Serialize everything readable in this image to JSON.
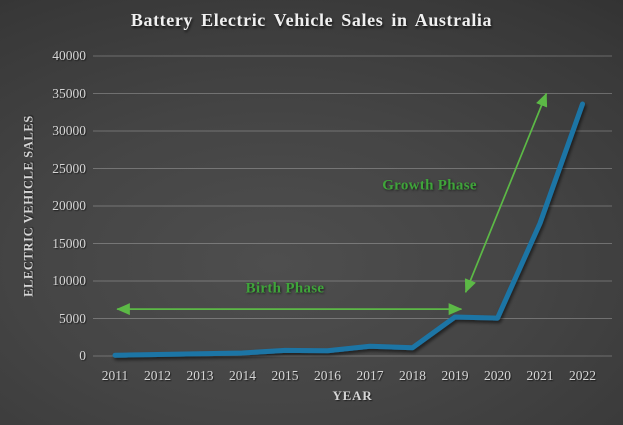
{
  "chart_data": {
    "type": "line",
    "title": "Battery Electric Vehicle Sales in Australia",
    "xlabel": "YEAR",
    "ylabel": "ELECTRIC VEHICLE SALES",
    "categories": [
      2011,
      2012,
      2013,
      2014,
      2015,
      2016,
      2017,
      2018,
      2019,
      2020,
      2021,
      2022
    ],
    "values": [
      100,
      200,
      300,
      400,
      750,
      700,
      1300,
      1100,
      5200,
      5050,
      17700,
      33600
    ],
    "ylim": [
      0,
      40000
    ],
    "yticks": [
      0,
      5000,
      10000,
      15000,
      20000,
      25000,
      30000,
      35000,
      40000
    ],
    "grid": true,
    "legend": "none",
    "colors": {
      "line": "#1e74a5",
      "annotation_text": "#3fa53a",
      "annotation_arrow": "#5cb946",
      "axis_text": "#d6d6d6",
      "gridline": "rgba(255,255,255,0.25)"
    },
    "annotations": [
      {
        "id": "birth-phase",
        "text": "Birth Phase",
        "label_x": 2015.0,
        "label_y": 9000,
        "arrow": {
          "x1": 2011.05,
          "y1": 6250,
          "x2": 2019.15,
          "y2": 6250
        },
        "double_headed": true
      },
      {
        "id": "growth-phase",
        "text": "Growth Phase",
        "label_x": 2018.4,
        "label_y": 22700,
        "arrow": {
          "x1": 2019.25,
          "y1": 8500,
          "x2": 2021.15,
          "y2": 35000
        },
        "double_headed": true
      }
    ]
  }
}
